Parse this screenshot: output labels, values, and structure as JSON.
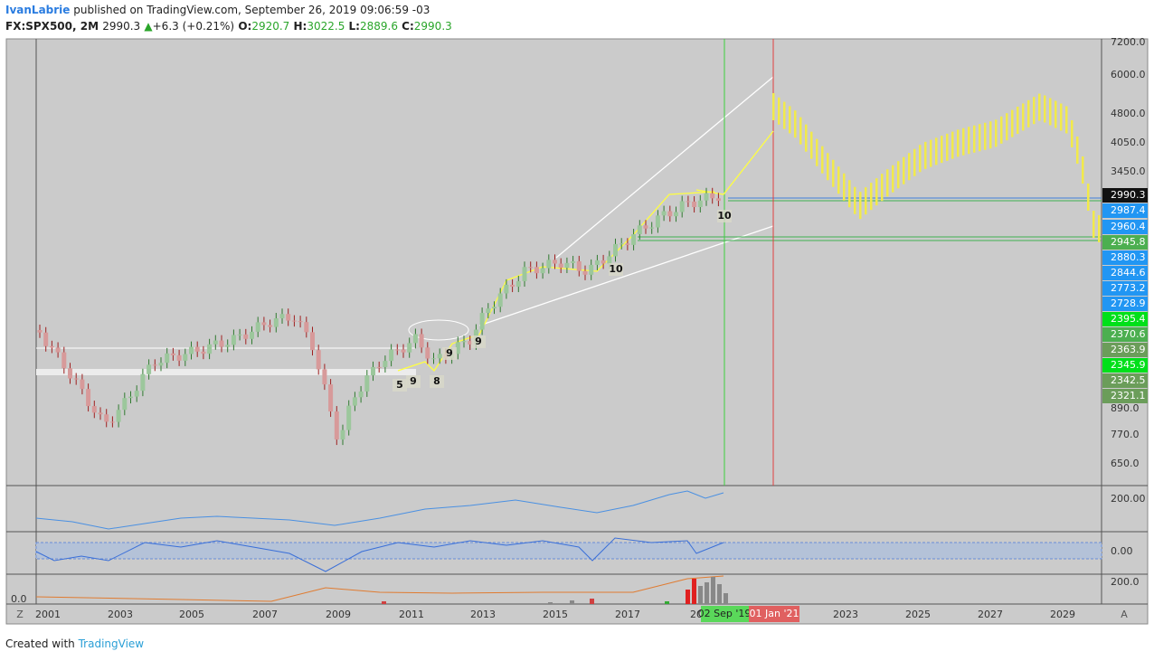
{
  "header": {
    "author": "IvanLabrie",
    "published": "published on TradingView.com, September 26, 2019 09:06:59 -03",
    "symbol": "FX:SPX500, 2M",
    "last": "2990.3",
    "arrow": "▲",
    "change": "+6.3 (+0.21%)",
    "o_label": "O:",
    "open": "2920.7",
    "h_label": "H:",
    "high": "3022.5",
    "l_label": "L:",
    "low": "2889.6",
    "c_label": "C:",
    "close": "2990.3"
  },
  "price_axis": [
    {
      "text": "7200.0",
      "style": "plain"
    },
    {
      "text": "6000.0",
      "style": "plain"
    },
    {
      "text": "4800.0",
      "style": "plain"
    },
    {
      "text": "4050.0",
      "style": "plain"
    },
    {
      "text": "3450.0",
      "style": "plain"
    },
    {
      "text": "2990.3",
      "style": "black"
    },
    {
      "text": "2987.4",
      "style": "blue"
    },
    {
      "text": "2960.4",
      "style": "blue"
    },
    {
      "text": "2945.8",
      "style": "green"
    },
    {
      "text": "2880.3",
      "style": "blue"
    },
    {
      "text": "2844.6",
      "style": "blue"
    },
    {
      "text": "2773.2",
      "style": "blue"
    },
    {
      "text": "2728.9",
      "style": "blue"
    },
    {
      "text": "2395.4",
      "style": "lime"
    },
    {
      "text": "2370.6",
      "style": "green"
    },
    {
      "text": "2363.9",
      "style": "olive"
    },
    {
      "text": "2345.9",
      "style": "lime"
    },
    {
      "text": "2342.5",
      "style": "olive"
    },
    {
      "text": "2321.1",
      "style": "olive"
    },
    {
      "text": "890.0",
      "style": "plain"
    },
    {
      "text": "770.0",
      "style": "plain"
    },
    {
      "text": "650.0",
      "style": "plain"
    }
  ],
  "indicator_axis": [
    "200.00",
    "0.00",
    "200.0"
  ],
  "indicator_left": "0.0",
  "time_axis": [
    "2001",
    "2003",
    "2005",
    "2007",
    "2009",
    "2011",
    "2013",
    "2015",
    "2017",
    "20",
    "2023",
    "2025",
    "2027",
    "2029"
  ],
  "badges": [
    "02 Sep '19",
    "01 Jan '21"
  ],
  "annotations": [
    "5",
    "9",
    "8",
    "9",
    "9",
    "10",
    "10"
  ],
  "buttons": [
    "Z",
    "A"
  ],
  "footer": {
    "prefix": "Created with",
    "brand": "TradingView"
  }
}
